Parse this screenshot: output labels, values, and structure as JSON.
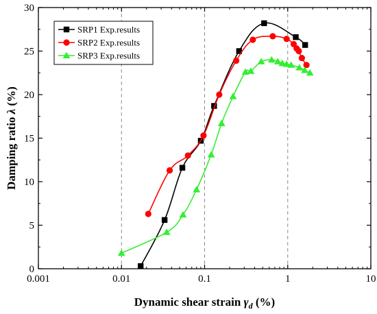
{
  "chart_data": {
    "type": "line",
    "xscale": "log",
    "xlim": [
      0.001,
      10
    ],
    "ylim": [
      0,
      30
    ],
    "xticks": [
      0.001,
      0.01,
      0.1,
      1,
      10
    ],
    "xtick_labels": [
      "0.001",
      "0.01",
      "0.1",
      "1",
      "10"
    ],
    "yticks": [
      0,
      5,
      10,
      15,
      20,
      25,
      30
    ],
    "ytick_labels": [
      "0",
      "5",
      "10",
      "15",
      "20",
      "25",
      "30"
    ],
    "xlabel_main": "Dynamic shear strain ",
    "xlabel_symbol": "γ",
    "xlabel_sub": "d",
    "xlabel_unit": " (%)",
    "ylabel_main": "Damping ratio ",
    "ylabel_symbol": "λ",
    "ylabel_unit": " (%)",
    "grid": "vertical-dashed",
    "legend_position": "top-left",
    "series": [
      {
        "name": "SRP1 Exp.results",
        "color": "#000000",
        "marker": "square",
        "x": [
          0.017,
          0.033,
          0.054,
          0.09,
          0.13,
          0.26,
          0.52,
          1.25,
          1.62
        ],
        "y": [
          0.3,
          5.6,
          11.6,
          14.7,
          18.7,
          25.0,
          28.2,
          26.6,
          25.7
        ]
      },
      {
        "name": "SRP2 Exp.results",
        "color": "#ff0000",
        "marker": "circle",
        "x": [
          0.021,
          0.038,
          0.063,
          0.097,
          0.15,
          0.24,
          0.38,
          0.66,
          0.97,
          1.18,
          1.28,
          1.36,
          1.48,
          1.68
        ],
        "y": [
          6.3,
          11.3,
          13.0,
          15.3,
          20.0,
          23.9,
          26.3,
          26.7,
          26.4,
          25.8,
          25.3,
          25.0,
          24.2,
          23.4
        ]
      },
      {
        "name": "SRP3 Exp.results",
        "color": "#33ee33",
        "marker": "triangle",
        "x": [
          0.01,
          0.035,
          0.055,
          0.08,
          0.12,
          0.16,
          0.22,
          0.31,
          0.36,
          0.48,
          0.64,
          0.76,
          0.86,
          0.97,
          1.1,
          1.38,
          1.6,
          1.85
        ],
        "y": [
          1.8,
          4.2,
          6.2,
          9.1,
          13.1,
          16.7,
          19.8,
          22.6,
          22.7,
          23.8,
          24.0,
          23.8,
          23.6,
          23.5,
          23.4,
          23.1,
          22.8,
          22.5
        ]
      }
    ]
  }
}
